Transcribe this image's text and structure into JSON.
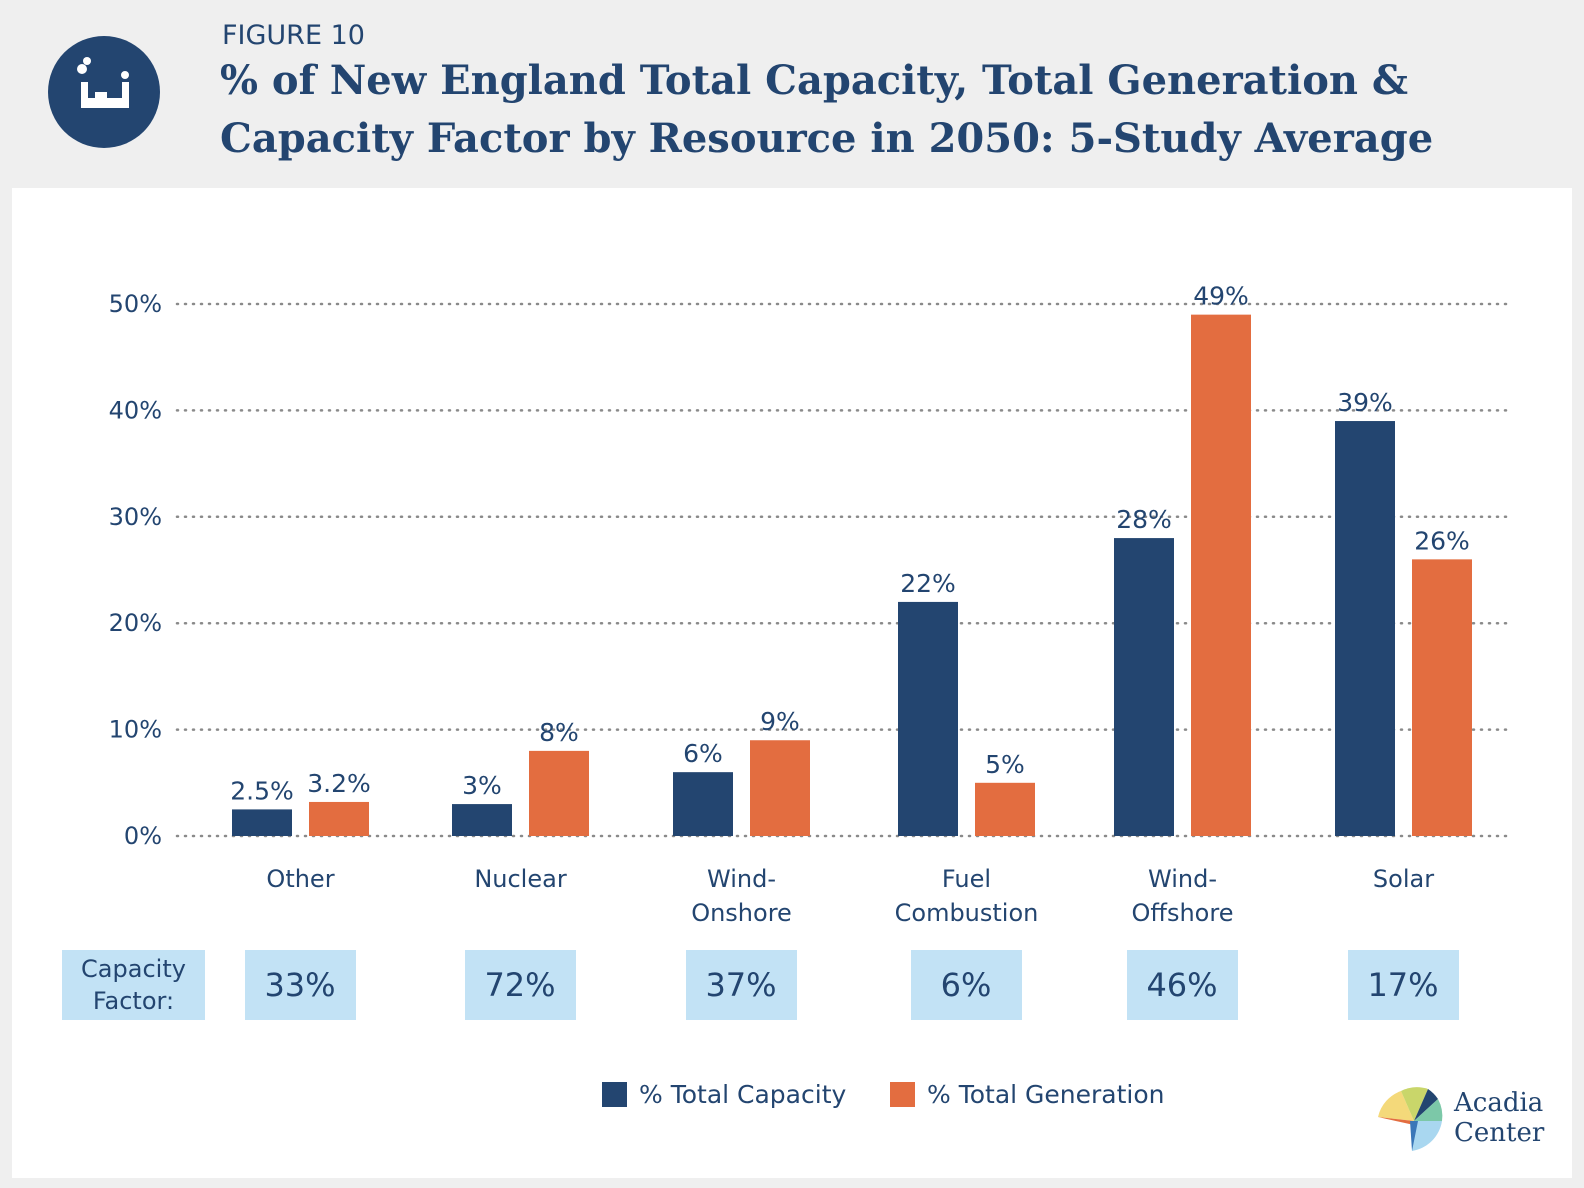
{
  "header": {
    "figure_label": "FIGURE 10",
    "title_line1": "% of New England Total Capacity, Total Generation &",
    "title_line2": "Capacity Factor by Resource in 2050: 5-Study Average",
    "icon": "power-plant-icon"
  },
  "chart_data": {
    "type": "bar",
    "title": "% of New England Total Capacity, Total Generation & Capacity Factor by Resource in 2050: 5-Study Average",
    "categories": [
      "Other",
      "Nuclear",
      "Wind-Onshore",
      "Fuel Combustion",
      "Wind-Offshore",
      "Solar"
    ],
    "category_lines": [
      [
        "Other"
      ],
      [
        "Nuclear"
      ],
      [
        "Wind-",
        "Onshore"
      ],
      [
        "Fuel",
        "Combustion"
      ],
      [
        "Wind-",
        "Offshore"
      ],
      [
        "Solar"
      ]
    ],
    "series": [
      {
        "name": "% Total Capacity",
        "color": "#234570",
        "values": [
          2.5,
          3,
          6,
          22,
          28,
          39
        ],
        "labels": [
          "2.5%",
          "3%",
          "6%",
          "22%",
          "28%",
          "39%"
        ]
      },
      {
        "name": "% Total Generation",
        "color": "#e36d40",
        "values": [
          3.2,
          8,
          9,
          5,
          49,
          26
        ],
        "labels": [
          "3.2%",
          "8%",
          "9%",
          "5%",
          "49%",
          "26%"
        ]
      }
    ],
    "yticks": [
      "0%",
      "10%",
      "20%",
      "30%",
      "40%",
      "50%"
    ],
    "ytick_values": [
      0,
      10,
      20,
      30,
      40,
      50
    ],
    "ylim": [
      0,
      50
    ],
    "grid": "horizontal dotted",
    "legend": "bottom-center"
  },
  "capacity_factor": {
    "title": "Capacity Factor:",
    "values": [
      "33%",
      "72%",
      "37%",
      "6%",
      "46%",
      "17%"
    ]
  },
  "legend": {
    "capacity": "% Total Capacity",
    "generation": "% Total Generation"
  },
  "brand": {
    "line1": "Acadia",
    "line2": "Center",
    "colors": [
      "#f4d97a",
      "#e36d40",
      "#234570",
      "#7cc8a8",
      "#a9d7f0"
    ]
  }
}
